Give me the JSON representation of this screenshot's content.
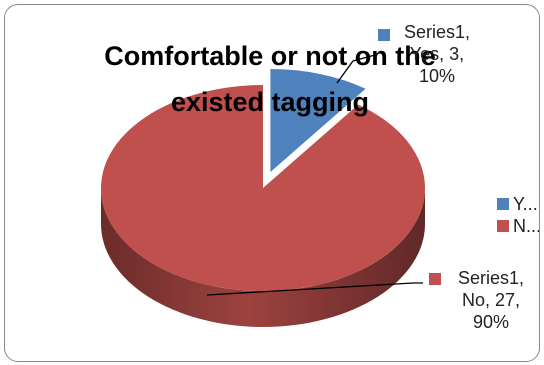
{
  "chart_data": {
    "type": "pie",
    "style": "3d",
    "title": "Comfortable or not on the existed tagging",
    "series_name": "Series1",
    "categories": [
      "Yes",
      "No"
    ],
    "values": [
      3,
      27
    ],
    "percents": [
      10,
      90
    ],
    "colors": [
      "#4f81bd",
      "#c0504d"
    ],
    "data_labels": [
      {
        "lines": [
          "Series1,",
          "Yes, 3,",
          "10%"
        ]
      },
      {
        "lines": [
          "Series1,",
          "No, 27,",
          "90%"
        ]
      }
    ],
    "legend": {
      "position": "right",
      "entries": [
        {
          "label": "Y...",
          "color": "#4f81bd"
        },
        {
          "label": "N...",
          "color": "#c0504d"
        }
      ]
    }
  }
}
